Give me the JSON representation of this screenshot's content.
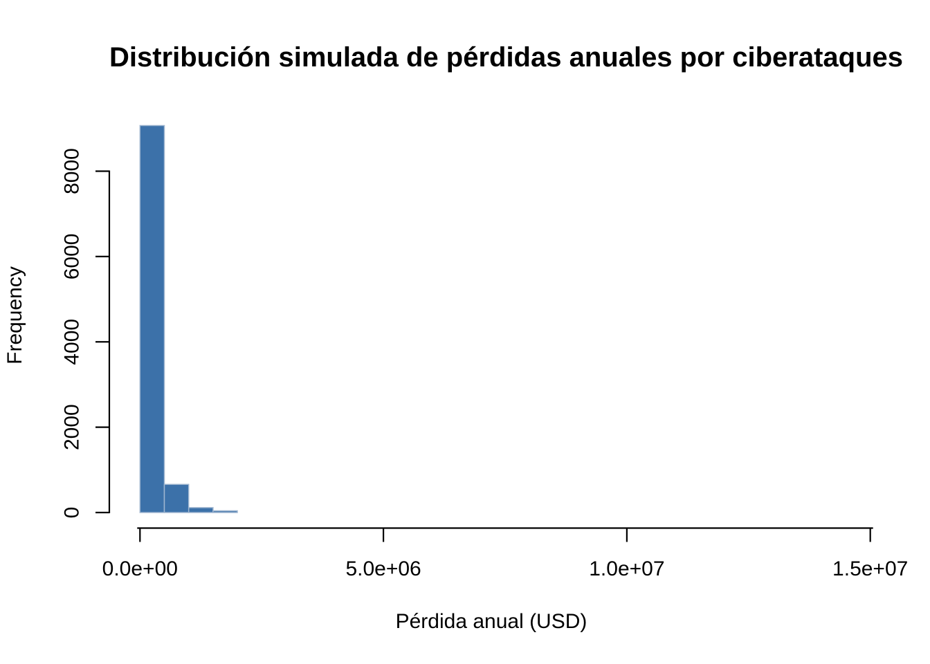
{
  "chart_data": {
    "type": "bar",
    "subtype": "histogram",
    "title": "Distribución simulada de pérdidas anuales por ciberataques",
    "xlabel": "Pérdida anual (USD)",
    "ylabel": "Frequency",
    "xlim": [
      0,
      15000000
    ],
    "ylim": [
      0,
      8000
    ],
    "x_ticks": [
      {
        "value": 0,
        "label": "0.0e+00"
      },
      {
        "value": 5000000,
        "label": "5.0e+06"
      },
      {
        "value": 10000000,
        "label": "1.0e+07"
      },
      {
        "value": 15000000,
        "label": "1.5e+07"
      }
    ],
    "y_ticks": [
      {
        "value": 0,
        "label": "0"
      },
      {
        "value": 2000,
        "label": "2000"
      },
      {
        "value": 4000,
        "label": "4000"
      },
      {
        "value": 6000,
        "label": "6000"
      },
      {
        "value": 8000,
        "label": "8000"
      }
    ],
    "bin_width": 500000,
    "bins": [
      {
        "start": 0,
        "end": 500000,
        "count": 9070
      },
      {
        "start": 500000,
        "end": 1000000,
        "count": 660
      },
      {
        "start": 1000000,
        "end": 1500000,
        "count": 115
      },
      {
        "start": 1500000,
        "end": 2000000,
        "count": 40
      }
    ],
    "colors": {
      "bar_fill": "#3C71A9",
      "bar_border": "#9FB6D0",
      "axis": "#000000",
      "text": "#000000",
      "background": "#FFFFFF"
    },
    "grid": false,
    "legend": false
  }
}
